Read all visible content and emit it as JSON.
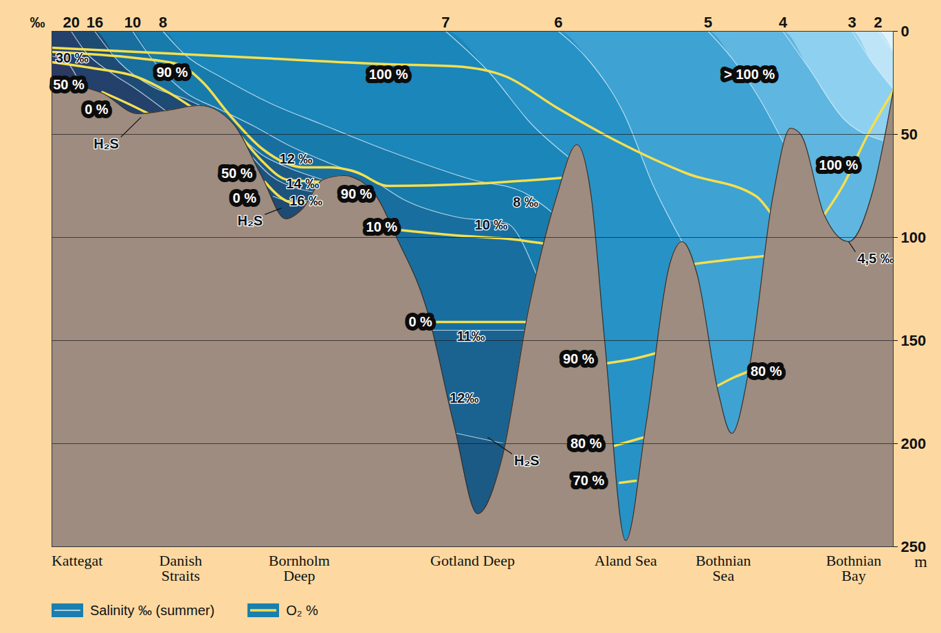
{
  "chart_data": {
    "type": "section",
    "xlim": [
      0,
      100
    ],
    "ylim": [
      0,
      250
    ],
    "yticks": [
      0,
      50,
      100,
      150,
      200,
      250
    ],
    "y_label": "m",
    "x2_label": "‰",
    "grid": true,
    "color": "#e2f3fb",
    "legend": "bottom",
    "legend_items": [
      {
        "name": "Salinity ‰ (summer)",
        "color": "#d9eefa",
        "line_style": "solid"
      },
      {
        "name": "O₂ %",
        "color": "#f5df4d",
        "line_style": "solid"
      }
    ],
    "bottom": {
      "color": "#9d8c7f",
      "x": [
        0,
        2.9,
        6,
        10.2,
        13.5,
        17.6,
        21.6,
        24.9,
        27.8,
        29.8,
        32.2,
        34.7,
        38,
        41.2,
        44.5,
        47.8,
        50.6,
        53.5,
        56.7,
        60,
        62.4,
        64.1,
        65.7,
        68.2,
        70.6,
        73.5,
        74.9,
        76.7,
        79.2,
        80.8,
        82.9,
        85.7,
        87.8,
        89,
        91.8,
        94.7,
        97.6,
        100
      ],
      "depth": [
        22,
        26,
        30,
        40,
        38.5,
        36,
        45,
        70,
        91,
        86,
        72,
        70,
        77,
        102,
        134,
        191,
        234,
        207,
        134,
        80,
        55,
        80,
        150,
        247,
        191,
        112,
        102,
        118,
        175,
        195,
        163,
        80,
        47,
        50,
        89,
        102,
        77,
        29
      ]
    },
    "isohalines": [
      {
        "value": 2,
        "color": "#bde5f7",
        "points": [
          [
            98.2,
            0
          ],
          [
            100,
            10
          ]
        ]
      },
      {
        "value": 3,
        "color": "#8ed0ef",
        "points": [
          [
            95.1,
            0
          ],
          [
            97.5,
            15
          ],
          [
            100,
            28
          ]
        ]
      },
      {
        "value": 4,
        "color": "#5fb6e0",
        "points": [
          [
            86.9,
            0
          ],
          [
            90,
            18
          ],
          [
            94,
            42
          ],
          [
            98.8,
            53
          ]
        ]
      },
      {
        "value": 5,
        "color": "#3ea2d3",
        "points": [
          [
            78,
            0
          ],
          [
            81,
            14
          ],
          [
            84,
            32
          ],
          [
            87.2,
            56
          ]
        ]
      },
      {
        "value": 6,
        "color": "#2792c6",
        "points": [
          [
            60.2,
            0
          ],
          [
            64,
            15
          ],
          [
            68,
            40
          ],
          [
            71.5,
            75
          ],
          [
            74.9,
            102
          ]
        ]
      },
      {
        "value": 7,
        "color": "#1a86b9",
        "points": [
          [
            46.8,
            0
          ],
          [
            52,
            20
          ],
          [
            57,
            45
          ],
          [
            61.7,
            62
          ]
        ]
      },
      {
        "value": 8,
        "color": "#177bac",
        "points": [
          [
            13.2,
            0
          ],
          [
            16,
            12
          ],
          [
            20,
            22
          ],
          [
            26,
            35
          ],
          [
            32,
            45
          ],
          [
            40,
            58
          ],
          [
            50,
            72
          ],
          [
            56,
            78
          ],
          [
            59.5,
            88
          ]
        ]
      },
      {
        "value": 10,
        "color": "#186f9f",
        "points": [
          [
            9.6,
            0
          ],
          [
            12,
            14
          ],
          [
            16,
            30
          ],
          [
            20,
            38
          ],
          [
            24,
            46
          ],
          [
            28,
            55
          ],
          [
            33,
            64
          ],
          [
            38,
            72
          ],
          [
            42,
            82
          ],
          [
            48,
            90
          ],
          [
            54,
            93
          ],
          [
            57.6,
            118
          ]
        ]
      },
      {
        "value": 11,
        "color": "#1a6391",
        "points": [
          [
            45.2,
            145
          ],
          [
            56.1,
            145
          ]
        ]
      },
      {
        "value": 12,
        "color": "#1b5a85",
        "points": [
          [
            22.4,
            51
          ],
          [
            25,
            60
          ],
          [
            28,
            66
          ],
          [
            32.2,
            72
          ]
        ]
      },
      {
        "value": 12,
        "color": "#1b5a85",
        "points": [
          [
            48.1,
            195
          ],
          [
            53.8,
            200
          ]
        ]
      },
      {
        "value": 14,
        "color": "#1c527b",
        "points": [
          [
            23.6,
            60
          ],
          [
            26,
            70
          ],
          [
            29,
            76
          ],
          [
            31.2,
            78
          ]
        ]
      },
      {
        "value": 16,
        "color": "#1d4b73",
        "points": [
          [
            5.1,
            0
          ],
          [
            8,
            15
          ],
          [
            12,
            27
          ],
          [
            16,
            33
          ],
          [
            17.6,
            36
          ]
        ]
      },
      {
        "value": 16,
        "color": "#1d4b73",
        "points": [
          [
            26.3,
            80
          ],
          [
            28,
            82
          ],
          [
            30.5,
            82
          ]
        ]
      },
      {
        "value": 20,
        "color": "#23416b",
        "points": [
          [
            2.3,
            0
          ],
          [
            4,
            10
          ],
          [
            7,
            20
          ],
          [
            10,
            28
          ],
          [
            13.5,
            38.5
          ]
        ]
      },
      {
        "value": 30,
        "color": "#2c3a62",
        "points": [
          [
            0,
            12
          ],
          [
            2,
            16
          ],
          [
            3.5,
            26.8
          ]
        ]
      }
    ],
    "oxygen_lines": [
      {
        "points": [
          [
            0,
            8
          ],
          [
            10,
            10
          ],
          [
            25,
            13
          ],
          [
            40,
            16
          ],
          [
            48,
            17
          ],
          [
            54,
            22
          ],
          [
            60,
            37
          ],
          [
            67,
            53
          ],
          [
            75.5,
            69
          ],
          [
            83.7,
            80
          ],
          [
            85.4,
            88
          ]
        ]
      },
      {
        "points": [
          [
            91.8,
            89
          ],
          [
            94,
            75
          ],
          [
            97,
            50
          ],
          [
            100,
            29
          ]
        ]
      },
      {
        "points": [
          [
            0,
            10
          ],
          [
            10,
            13
          ],
          [
            15,
            16
          ],
          [
            18,
            25
          ],
          [
            21,
            40
          ],
          [
            25,
            57
          ],
          [
            30,
            66
          ],
          [
            33,
            66
          ],
          [
            36,
            68
          ],
          [
            40,
            75
          ],
          [
            50,
            74
          ],
          [
            60.9,
            71
          ]
        ]
      },
      {
        "points": [
          [
            0,
            15
          ],
          [
            5,
            18
          ],
          [
            10,
            22
          ],
          [
            14,
            30
          ],
          [
            16.5,
            36.5
          ]
        ]
      },
      {
        "points": [
          [
            6,
            29.5
          ],
          [
            9,
            35
          ],
          [
            11.4,
            39.8
          ]
        ]
      },
      {
        "points": [
          [
            22.5,
            51
          ],
          [
            25,
            63
          ],
          [
            28,
            72
          ],
          [
            32,
            73
          ]
        ]
      },
      {
        "points": [
          [
            25.3,
            73
          ],
          [
            27,
            80
          ],
          [
            28.5,
            83
          ],
          [
            30.3,
            83
          ]
        ]
      },
      {
        "points": [
          [
            40.4,
            96
          ],
          [
            48,
            99
          ],
          [
            55,
            101
          ],
          [
            58.6,
            103
          ]
        ]
      },
      {
        "points": [
          [
            44.9,
            141
          ],
          [
            50,
            141
          ],
          [
            56.3,
            141
          ]
        ]
      },
      {
        "points": [
          [
            66,
            161
          ],
          [
            69,
            159
          ],
          [
            71.9,
            156
          ]
        ]
      },
      {
        "points": [
          [
            66.9,
            201
          ],
          [
            70.3,
            197
          ]
        ]
      },
      {
        "points": [
          [
            67.5,
            219
          ],
          [
            69.4,
            218
          ]
        ]
      },
      {
        "points": [
          [
            76.1,
            113
          ],
          [
            80,
            111
          ],
          [
            84.7,
            109
          ]
        ]
      },
      {
        "points": [
          [
            79.1,
            172
          ],
          [
            81,
            168
          ],
          [
            82.8,
            165
          ]
        ]
      }
    ],
    "oxygen_labels": [
      {
        "text": "50 %",
        "x": 2,
        "depth": 26
      },
      {
        "text": "90 %",
        "x": 14.3,
        "depth": 20
      },
      {
        "text": "0 %",
        "x": 5.3,
        "depth": 38
      },
      {
        "text": "100 %",
        "x": 40,
        "depth": 21
      },
      {
        "text": "> 100 %",
        "x": 82.9,
        "depth": 21
      },
      {
        "text": "50 %",
        "x": 22,
        "depth": 69
      },
      {
        "text": "0 %",
        "x": 22.9,
        "depth": 81
      },
      {
        "text": "90 %",
        "x": 36.2,
        "depth": 79
      },
      {
        "text": "10 %",
        "x": 39.2,
        "depth": 95
      },
      {
        "text": "100 %",
        "x": 93.5,
        "depth": 65
      },
      {
        "text": "0 %",
        "x": 43.8,
        "depth": 141
      },
      {
        "text": "90 %",
        "x": 62.6,
        "depth": 159
      },
      {
        "text": "80 %",
        "x": 84.9,
        "depth": 165
      },
      {
        "text": "80 %",
        "x": 63.5,
        "depth": 200
      },
      {
        "text": "70 %",
        "x": 63.8,
        "depth": 218
      }
    ],
    "salinity_labels": [
      {
        "text": "30 ‰",
        "x": 2.4,
        "depth": 13
      },
      {
        "text": "12 ‰",
        "x": 29,
        "depth": 62
      },
      {
        "text": "14 ‰",
        "x": 29.8,
        "depth": 74
      },
      {
        "text": "16 ‰",
        "x": 30.2,
        "depth": 82.5
      },
      {
        "text": "8 ‰",
        "x": 56.3,
        "depth": 83
      },
      {
        "text": "10 ‰",
        "x": 52.2,
        "depth": 94
      },
      {
        "text": "11‰",
        "x": 49.8,
        "depth": 148
      },
      {
        "text": "12‰",
        "x": 49,
        "depth": 178
      },
      {
        "text": "4,5 ‰",
        "x": 95.5,
        "depth": 107,
        "pointer": [
          94.7,
          102
        ]
      },
      {
        "text": "H₂S",
        "x": 8.2,
        "depth": 51.3,
        "pointer": [
          10.6,
          41.7
        ]
      },
      {
        "text": "H₂S",
        "x": 25.3,
        "depth": 88.9,
        "pointer": [
          27.3,
          85.7
        ]
      },
      {
        "text": "H₂S",
        "x": 54.7,
        "depth": 205,
        "pointer": [
          51.8,
          197
        ]
      }
    ],
    "regions": [
      {
        "name": "Kattegat",
        "x": 3
      },
      {
        "name": "Danish\nStraits",
        "x": 15.3
      },
      {
        "name": "Bornholm\nDeep",
        "x": 29.4
      },
      {
        "name": "Gotland Deep",
        "x": 50
      },
      {
        "name": "Aland Sea",
        "x": 68.2
      },
      {
        "name": "Bothnian\nSea",
        "x": 79.8
      },
      {
        "name": "Bothnian\nBay",
        "x": 95.3
      }
    ]
  }
}
